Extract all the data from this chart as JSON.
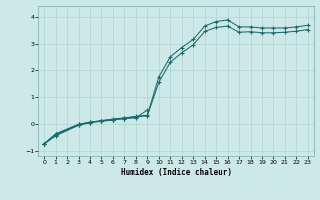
{
  "xlabel": "Humidex (Indice chaleur)",
  "background_color": "#cce9e8",
  "line_color": "#1a6b6b",
  "grid_color": "#aed4d3",
  "ylim": [
    -1.2,
    4.4
  ],
  "xlim": [
    -0.5,
    23.5
  ],
  "yticks": [
    -1,
    0,
    1,
    2,
    3,
    4
  ],
  "xticks": [
    0,
    1,
    2,
    3,
    4,
    5,
    6,
    7,
    8,
    9,
    10,
    11,
    12,
    13,
    14,
    15,
    16,
    17,
    18,
    19,
    20,
    21,
    22,
    23
  ],
  "lineA_x": [
    0,
    1,
    3,
    4,
    5,
    6,
    7,
    8,
    9,
    10,
    11,
    12,
    13,
    14,
    15,
    16,
    17,
    18,
    19,
    20,
    21,
    22,
    23
  ],
  "lineA_y": [
    -0.75,
    -0.45,
    -0.05,
    0.05,
    0.12,
    0.18,
    0.22,
    0.28,
    0.32,
    1.75,
    2.5,
    2.85,
    3.15,
    3.65,
    3.82,
    3.88,
    3.62,
    3.62,
    3.58,
    3.58,
    3.58,
    3.62,
    3.68
  ],
  "lineB_x": [
    0,
    1,
    3,
    4,
    5,
    6,
    7,
    8,
    9,
    10,
    11,
    12,
    13,
    14,
    15,
    16,
    17,
    18,
    19,
    20,
    21,
    22,
    23
  ],
  "lineB_y": [
    -0.75,
    -0.4,
    -0.05,
    0.05,
    0.1,
    0.16,
    0.2,
    0.26,
    0.3,
    1.55,
    2.3,
    2.65,
    2.95,
    3.45,
    3.6,
    3.65,
    3.42,
    3.44,
    3.4,
    3.4,
    3.42,
    3.46,
    3.52
  ],
  "lineC_x": [
    0,
    1,
    3,
    4,
    5,
    6,
    7,
    8
  ],
  "lineC_y": [
    -0.75,
    -0.38,
    -0.02,
    0.06,
    0.12,
    0.16,
    0.22,
    0.26
  ],
  "lineD_x": [
    0,
    1,
    3,
    4,
    5,
    6,
    7,
    8,
    9
  ],
  "lineD_y": [
    -0.75,
    -0.38,
    -0.02,
    0.06,
    0.1,
    0.14,
    0.2,
    0.22,
    0.52
  ]
}
